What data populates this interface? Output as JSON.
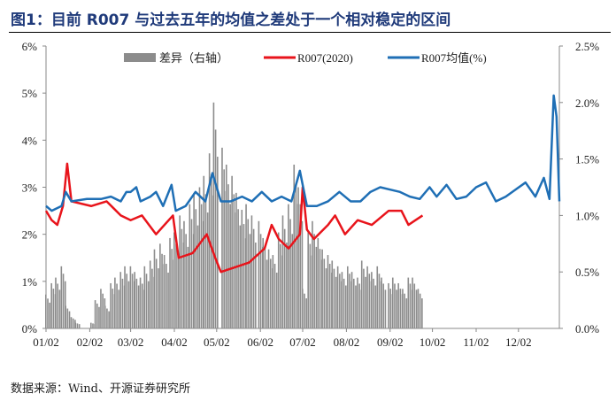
{
  "title": "图1：目前 R007 与过去五年的均值之差处于一个相对稳定的区间",
  "source": "数据来源：Wind、开源证券研究所",
  "chart_data": {
    "type": "bar+line",
    "legend_position": "top",
    "x_ticks": [
      "01/02",
      "02/02",
      "03/02",
      "04/02",
      "05/02",
      "06/02",
      "07/02",
      "08/02",
      "09/02",
      "10/02",
      "11/02",
      "12/02"
    ],
    "y_left": {
      "ticks": [
        "0%",
        "1%",
        "2%",
        "3%",
        "4%",
        "5%",
        "6%"
      ],
      "range": [
        0,
        6
      ]
    },
    "y_right": {
      "ticks": [
        "0.0%",
        "0.5%",
        "1.0%",
        "1.5%",
        "2.0%",
        "2.5%"
      ],
      "range": [
        0,
        2.5
      ]
    },
    "colors": {
      "bars": "#8c8c8c",
      "r2020": "#e8141b",
      "mean": "#1f6fb5"
    },
    "series": [
      {
        "name": "差异（右轴）",
        "type": "bar",
        "axis": "right",
        "points": [
          [
            "01/02",
            0.3
          ],
          [
            "01/06",
            0.4
          ],
          [
            "01/09",
            0.45
          ],
          [
            "01/13",
            0.55
          ],
          [
            "01/16",
            0.2
          ],
          [
            "01/20",
            0.1
          ],
          [
            "01/23",
            0.05
          ],
          [
            "02/03",
            0.05
          ],
          [
            "02/06",
            0.25
          ],
          [
            "02/10",
            0.35
          ],
          [
            "02/13",
            0.2
          ],
          [
            "02/17",
            0.4
          ],
          [
            "02/20",
            0.45
          ],
          [
            "02/24",
            0.5
          ],
          [
            "02/27",
            0.55
          ],
          [
            "03/02",
            0.55
          ],
          [
            "03/05",
            0.5
          ],
          [
            "03/09",
            0.45
          ],
          [
            "03/12",
            0.55
          ],
          [
            "03/16",
            0.6
          ],
          [
            "03/19",
            0.7
          ],
          [
            "03/23",
            0.75
          ],
          [
            "03/26",
            0.65
          ],
          [
            "03/30",
            0.8
          ],
          [
            "04/02",
            0.85
          ],
          [
            "04/06",
            1.0
          ],
          [
            "04/09",
            0.95
          ],
          [
            "04/13",
            1.1
          ],
          [
            "04/16",
            1.2
          ],
          [
            "04/20",
            1.25
          ],
          [
            "04/23",
            1.35
          ],
          [
            "04/27",
            1.55
          ],
          [
            "04/30",
            2.0
          ],
          [
            "05/06",
            1.6
          ],
          [
            "05/09",
            1.45
          ],
          [
            "05/13",
            1.35
          ],
          [
            "05/16",
            1.2
          ],
          [
            "05/20",
            1.05
          ],
          [
            "05/23",
            1.1
          ],
          [
            "05/27",
            1.0
          ],
          [
            "06/01",
            0.95
          ],
          [
            "06/04",
            0.8
          ],
          [
            "06/08",
            0.7
          ],
          [
            "06/11",
            0.65
          ],
          [
            "06/15",
            0.85
          ],
          [
            "06/18",
            1.0
          ],
          [
            "06/22",
            1.1
          ],
          [
            "06/26",
            1.45
          ],
          [
            "06/29",
            1.25
          ],
          [
            "07/02",
            0.35
          ],
          [
            "07/06",
            0.85
          ],
          [
            "07/09",
            0.95
          ],
          [
            "07/13",
            0.8
          ],
          [
            "07/16",
            0.7
          ],
          [
            "07/20",
            0.65
          ],
          [
            "07/23",
            0.6
          ],
          [
            "07/27",
            0.55
          ],
          [
            "07/30",
            0.5
          ],
          [
            "08/03",
            0.55
          ],
          [
            "08/06",
            0.5
          ],
          [
            "08/10",
            0.45
          ],
          [
            "08/13",
            0.6
          ],
          [
            "08/17",
            0.55
          ],
          [
            "08/20",
            0.5
          ],
          [
            "08/24",
            0.55
          ],
          [
            "08/27",
            0.45
          ],
          [
            "09/01",
            0.4
          ],
          [
            "09/04",
            0.45
          ],
          [
            "09/08",
            0.4
          ],
          [
            "09/11",
            0.35
          ],
          [
            "09/15",
            0.45
          ],
          [
            "09/18",
            0.45
          ],
          [
            "09/22",
            0.35
          ]
        ]
      },
      {
        "name": "R007(2020)",
        "type": "line",
        "axis": "left",
        "points": [
          [
            "01/02",
            2.5
          ],
          [
            "01/06",
            2.3
          ],
          [
            "01/10",
            2.2
          ],
          [
            "01/14",
            2.6
          ],
          [
            "01/17",
            3.5
          ],
          [
            "01/20",
            2.7
          ],
          [
            "02/03",
            2.6
          ],
          [
            "02/14",
            2.7
          ],
          [
            "02/24",
            2.4
          ],
          [
            "03/02",
            2.3
          ],
          [
            "03/10",
            2.4
          ],
          [
            "03/20",
            2.0
          ],
          [
            "04/01",
            2.4
          ],
          [
            "04/05",
            1.5
          ],
          [
            "04/15",
            1.6
          ],
          [
            "04/25",
            2.0
          ],
          [
            "05/01",
            1.5
          ],
          [
            "05/05",
            1.2
          ],
          [
            "05/15",
            1.3
          ],
          [
            "05/25",
            1.4
          ],
          [
            "06/05",
            1.7
          ],
          [
            "06/10",
            2.2
          ],
          [
            "06/15",
            1.9
          ],
          [
            "06/22",
            1.7
          ],
          [
            "06/30",
            2.0
          ],
          [
            "07/02",
            3.0
          ],
          [
            "07/05",
            2.1
          ],
          [
            "07/10",
            1.9
          ],
          [
            "07/20",
            2.2
          ],
          [
            "07/25",
            2.4
          ],
          [
            "08/01",
            2.0
          ],
          [
            "08/10",
            2.3
          ],
          [
            "08/20",
            2.2
          ],
          [
            "09/01",
            2.5
          ],
          [
            "09/10",
            2.5
          ],
          [
            "09/15",
            2.2
          ],
          [
            "09/20",
            2.3
          ],
          [
            "09/25",
            2.4
          ]
        ]
      },
      {
        "name": "R007均值(%)",
        "type": "line",
        "axis": "left",
        "points": [
          [
            "01/02",
            2.6
          ],
          [
            "01/06",
            2.5
          ],
          [
            "01/13",
            2.6
          ],
          [
            "01/16",
            2.9
          ],
          [
            "01/20",
            2.7
          ],
          [
            "01/31",
            2.75
          ],
          [
            "02/10",
            2.75
          ],
          [
            "02/17",
            2.8
          ],
          [
            "02/24",
            2.7
          ],
          [
            "02/28",
            2.9
          ],
          [
            "03/02",
            2.9
          ],
          [
            "03/06",
            3.0
          ],
          [
            "03/09",
            2.7
          ],
          [
            "03/16",
            2.8
          ],
          [
            "03/20",
            2.9
          ],
          [
            "03/25",
            2.6
          ],
          [
            "03/31",
            3.05
          ],
          [
            "04/03",
            2.5
          ],
          [
            "04/10",
            2.6
          ],
          [
            "04/17",
            2.9
          ],
          [
            "04/24",
            2.7
          ],
          [
            "04/29",
            3.3
          ],
          [
            "05/05",
            2.7
          ],
          [
            "05/12",
            2.7
          ],
          [
            "05/20",
            2.8
          ],
          [
            "05/27",
            2.7
          ],
          [
            "06/03",
            2.9
          ],
          [
            "06/10",
            2.7
          ],
          [
            "06/17",
            2.8
          ],
          [
            "06/24",
            2.7
          ],
          [
            "06/30",
            3.35
          ],
          [
            "07/05",
            2.6
          ],
          [
            "07/12",
            2.6
          ],
          [
            "07/20",
            2.7
          ],
          [
            "07/28",
            2.9
          ],
          [
            "08/05",
            2.7
          ],
          [
            "08/12",
            2.7
          ],
          [
            "08/19",
            2.9
          ],
          [
            "08/26",
            3.0
          ],
          [
            "09/02",
            2.95
          ],
          [
            "09/09",
            2.9
          ],
          [
            "09/16",
            2.8
          ],
          [
            "09/23",
            2.75
          ],
          [
            "09/30",
            3.0
          ],
          [
            "10/05",
            2.8
          ],
          [
            "10/12",
            3.05
          ],
          [
            "10/19",
            2.75
          ],
          [
            "10/26",
            2.8
          ],
          [
            "11/02",
            3.0
          ],
          [
            "11/09",
            3.1
          ],
          [
            "11/16",
            2.7
          ],
          [
            "11/23",
            2.8
          ],
          [
            "11/30",
            2.95
          ],
          [
            "12/07",
            3.1
          ],
          [
            "12/14",
            2.8
          ],
          [
            "12/20",
            3.2
          ],
          [
            "12/24",
            2.75
          ],
          [
            "12/27",
            4.95
          ],
          [
            "12/29",
            4.5
          ],
          [
            "12/31",
            2.7
          ]
        ]
      }
    ]
  }
}
